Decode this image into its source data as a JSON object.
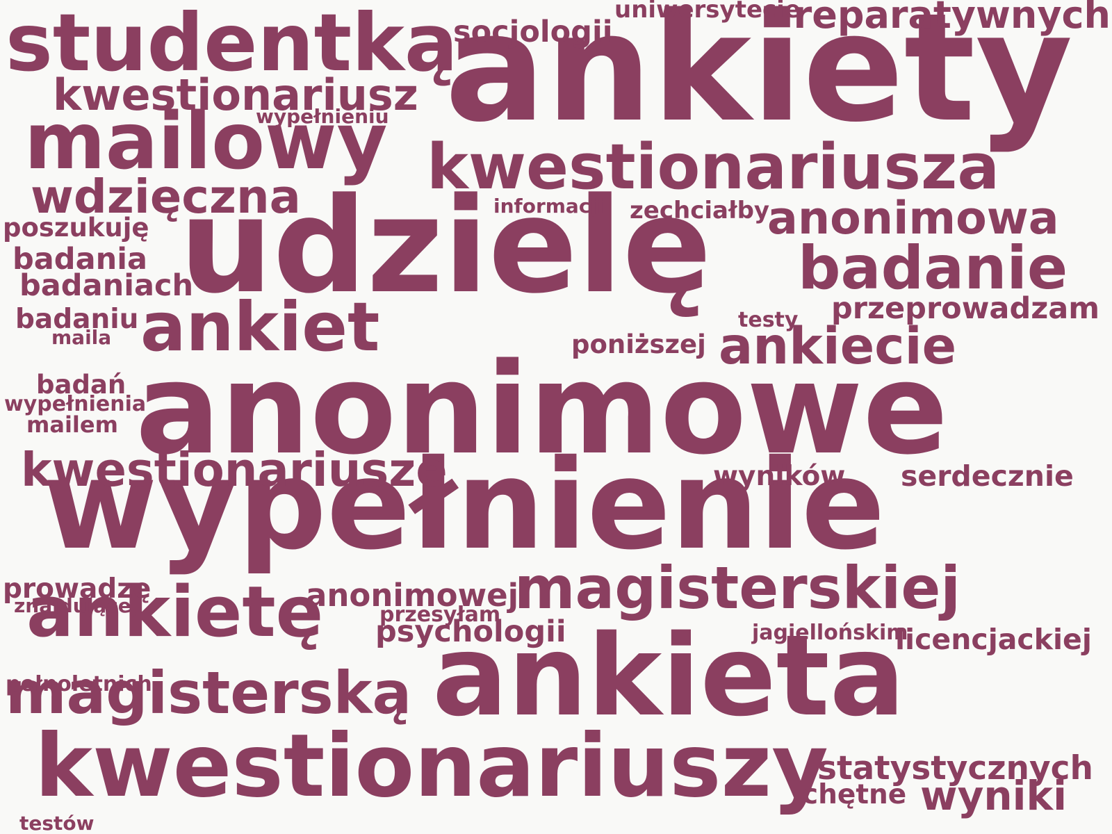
{
  "cloud": {
    "color": "#8b3f60",
    "background": "#f9f9f7",
    "words": [
      {
        "text": "ankiety",
        "weight": 1.0
      },
      {
        "text": "anonimowe",
        "weight": 0.84
      },
      {
        "text": "wypełnienie",
        "weight": 0.83
      },
      {
        "text": "udzielę",
        "weight": 0.88
      },
      {
        "text": "ankieta",
        "weight": 0.75
      },
      {
        "text": "kwestionariuszy",
        "weight": 0.58
      },
      {
        "text": "studentką",
        "weight": 0.53
      },
      {
        "text": "mailowy",
        "weight": 0.52
      },
      {
        "text": "ankietę",
        "weight": 0.47
      },
      {
        "text": "ankiet",
        "weight": 0.45
      },
      {
        "text": "kwestionariusza",
        "weight": 0.42
      },
      {
        "text": "magisterskiej",
        "weight": 0.39
      },
      {
        "text": "magisterską",
        "weight": 0.39
      },
      {
        "text": "badanie",
        "weight": 0.4
      },
      {
        "text": "ankiecie",
        "weight": 0.34
      },
      {
        "text": "kwestionariusze",
        "weight": 0.31
      },
      {
        "text": "wdzięczna",
        "weight": 0.31
      },
      {
        "text": "anonimowa",
        "weight": 0.3
      },
      {
        "text": "kwestionariusz",
        "weight": 0.29
      },
      {
        "text": "wyniki",
        "weight": 0.27
      },
      {
        "text": "reparatywnych",
        "weight": 0.25
      },
      {
        "text": "statystycznych",
        "weight": 0.22
      },
      {
        "text": "anonimowej",
        "weight": 0.21
      },
      {
        "text": "badania",
        "weight": 0.2
      },
      {
        "text": "socjologii",
        "weight": 0.2
      },
      {
        "text": "psychologii",
        "weight": 0.2
      },
      {
        "text": "przeprowadzam",
        "weight": 0.2
      },
      {
        "text": "badaniach",
        "weight": 0.2
      },
      {
        "text": "licencjackiej",
        "weight": 0.19
      },
      {
        "text": "serdecznie",
        "weight": 0.19
      },
      {
        "text": "wyników",
        "weight": 0.18
      },
      {
        "text": "badaniu",
        "weight": 0.18
      },
      {
        "text": "prowadzę",
        "weight": 0.18
      },
      {
        "text": "chętne",
        "weight": 0.18
      },
      {
        "text": "poszukuję",
        "weight": 0.17
      },
      {
        "text": "poniższej",
        "weight": 0.17
      },
      {
        "text": "badań",
        "weight": 0.17
      },
      {
        "text": "uniwersytecie",
        "weight": 0.16
      },
      {
        "text": "zechciałby",
        "weight": 0.16
      },
      {
        "text": "mailem",
        "weight": 0.15
      },
      {
        "text": "pełnoletnich",
        "weight": 0.14
      },
      {
        "text": "wypełnienia",
        "weight": 0.14
      },
      {
        "text": "przesyłam",
        "weight": 0.14
      },
      {
        "text": "testy",
        "weight": 0.14
      },
      {
        "text": "jagiellońskim",
        "weight": 0.14
      },
      {
        "text": "informacji",
        "weight": 0.13
      },
      {
        "text": "wypełnieniu",
        "weight": 0.13
      },
      {
        "text": "znajdującej",
        "weight": 0.13
      },
      {
        "text": "maila",
        "weight": 0.13
      },
      {
        "text": "testów",
        "weight": 0.13
      }
    ]
  }
}
